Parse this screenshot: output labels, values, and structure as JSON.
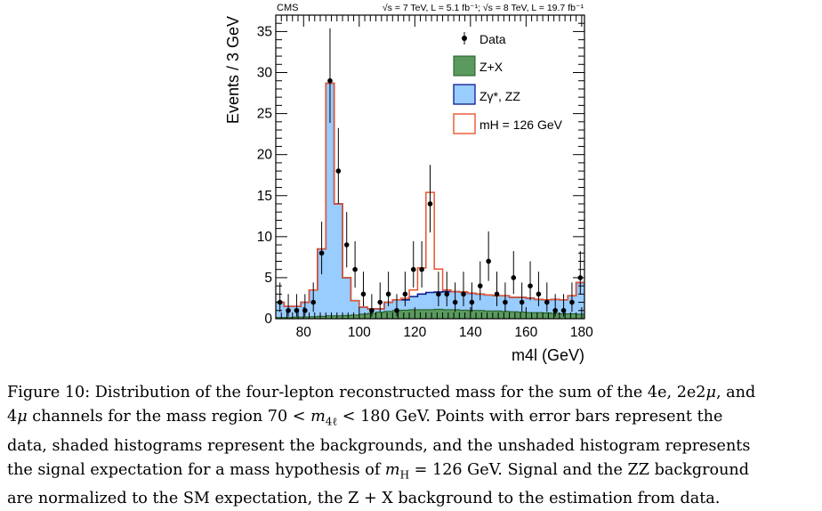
{
  "chart_data": {
    "type": "bar",
    "experiment_label": "CMS",
    "energy_label": "√s = 7 TeV, L = 5.1 fb⁻¹; √s = 8 TeV, L = 19.7 fb⁻¹",
    "xlabel": "m4l (GeV)",
    "ylabel": "Events / 3 GeV",
    "xlim": [
      70,
      181
    ],
    "ylim": [
      0,
      37
    ],
    "x_ticks": [
      80,
      100,
      120,
      140,
      160,
      180
    ],
    "y_ticks": [
      0,
      5,
      10,
      15,
      20,
      25,
      30,
      35
    ],
    "bin_width": 3,
    "bin_edges": [
      70,
      73,
      76,
      79,
      82,
      85,
      88,
      91,
      94,
      97,
      100,
      103,
      106,
      109,
      112,
      115,
      118,
      121,
      124,
      127,
      130,
      133,
      136,
      139,
      142,
      145,
      148,
      151,
      154,
      157,
      160,
      163,
      166,
      169,
      172,
      175,
      178,
      181
    ],
    "legend_position": "top-right",
    "series": [
      {
        "name": "Z+X",
        "kind": "stacked-fill",
        "color": "#5a9a5e",
        "values": [
          0.15,
          0.15,
          0.2,
          0.2,
          0.25,
          0.3,
          0.35,
          0.35,
          0.4,
          0.45,
          0.55,
          0.65,
          0.8,
          0.9,
          1.0,
          1.05,
          1.1,
          1.1,
          1.1,
          1.15,
          1.1,
          1.1,
          1.05,
          1.0,
          1.0,
          0.95,
          0.95,
          0.9,
          0.85,
          0.8,
          0.75,
          0.75,
          0.7,
          0.65,
          0.6,
          0.6,
          0.55
        ]
      },
      {
        "name": "Zγ*, ZZ",
        "kind": "stacked-fill",
        "color": "#99ccff",
        "edge_color": "#0c1a8c",
        "values": [
          1.85,
          1.35,
          1.3,
          1.8,
          3.25,
          8.2,
          28.35,
          13.65,
          4.6,
          1.75,
          0.85,
          0.55,
          0.4,
          1.1,
          1.3,
          1.25,
          1.6,
          1.9,
          2.1,
          2.1,
          2.2,
          2.2,
          2.2,
          2.1,
          2.0,
          1.95,
          1.85,
          1.9,
          1.75,
          1.8,
          1.75,
          1.6,
          1.6,
          1.7,
          1.7,
          2.2,
          3.85
        ]
      },
      {
        "name": "mH = 126 GeV",
        "kind": "outline",
        "color": "#e8552e",
        "values": [
          0,
          0,
          0,
          0,
          0,
          0,
          0,
          0,
          0,
          0,
          0,
          0,
          0,
          0,
          0,
          0.2,
          0.8,
          3.2,
          12.2,
          2.8,
          0.2,
          0,
          0,
          0,
          0,
          0,
          0,
          0,
          0,
          0,
          0,
          0,
          0,
          0,
          0,
          0,
          0
        ]
      }
    ],
    "data_points": {
      "name": "Data",
      "x": [
        71.5,
        74.5,
        77.5,
        80.5,
        83.5,
        86.5,
        89.5,
        92.5,
        95.5,
        98.5,
        101.5,
        104.5,
        107.5,
        110.5,
        113.5,
        116.5,
        119.5,
        122.5,
        125.5,
        128.5,
        131.5,
        134.5,
        137.5,
        140.5,
        143.5,
        146.5,
        149.5,
        152.5,
        155.5,
        158.5,
        161.5,
        164.5,
        167.5,
        170.5,
        173.5,
        176.5,
        179.5
      ],
      "y": [
        2,
        1,
        1,
        1,
        2,
        8,
        29,
        18,
        9,
        6,
        3,
        1,
        2,
        3,
        1,
        3,
        6,
        6,
        14,
        3,
        3,
        2,
        3,
        2,
        4,
        7,
        3,
        2,
        5,
        2,
        4,
        3,
        2,
        1,
        1,
        2,
        5
      ]
    }
  },
  "caption": {
    "l1_a": "Figure 10: Distribution of the four-lepton reconstructed mass for the sum of the 4e, 2e2",
    "l1_mu": "μ",
    "l1_b": ", and",
    "l2_a": "4",
    "l2_mu": "μ",
    "l2_b": " channels for the mass region 70 < ",
    "l2_m": "m",
    "l2_sub": "4ℓ",
    "l2_c": " < 180 GeV. Points with error bars represent the",
    "l3": "data, shaded histograms represent the backgrounds, and the unshaded histogram represents",
    "l4_a": "the signal expectation for a mass hypothesis of ",
    "l4_m": "m",
    "l4_sub": "H",
    "l4_b": " = 126 GeV. Signal and the ZZ background",
    "l5": "are normalized to the SM expectation, the Z + X background to the estimation from data."
  }
}
